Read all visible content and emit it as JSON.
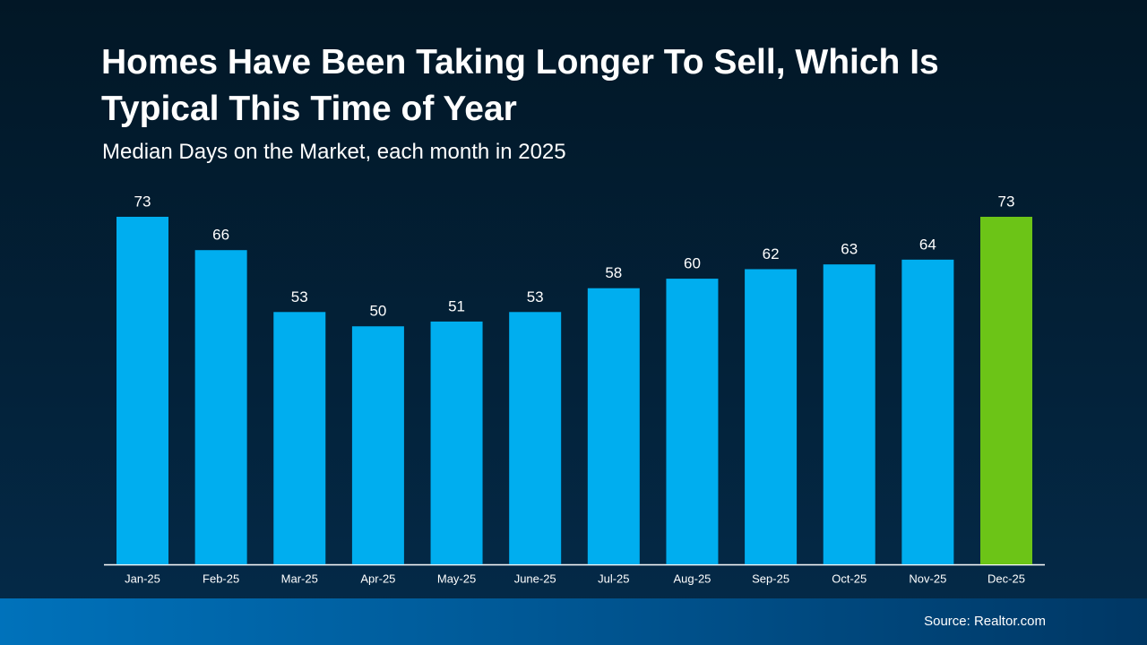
{
  "chart_data": {
    "type": "bar",
    "title": "Homes Have Been Taking Longer To Sell, Which Is Typical This Time of Year",
    "subtitle": "Median Days on the Market, each month in 2025",
    "categories": [
      "Jan-25",
      "Feb-25",
      "Mar-25",
      "Apr-25",
      "May-25",
      "June-25",
      "Jul-25",
      "Aug-25",
      "Sep-25",
      "Oct-25",
      "Nov-25",
      "Dec-25"
    ],
    "values": [
      73,
      66,
      53,
      50,
      51,
      53,
      58,
      60,
      62,
      63,
      64,
      73
    ],
    "colors": [
      "#00aeef",
      "#00aeef",
      "#00aeef",
      "#00aeef",
      "#00aeef",
      "#00aeef",
      "#00aeef",
      "#00aeef",
      "#00aeef",
      "#00aeef",
      "#00aeef",
      "#6cc417"
    ],
    "source": "Source: Realtor.com"
  }
}
